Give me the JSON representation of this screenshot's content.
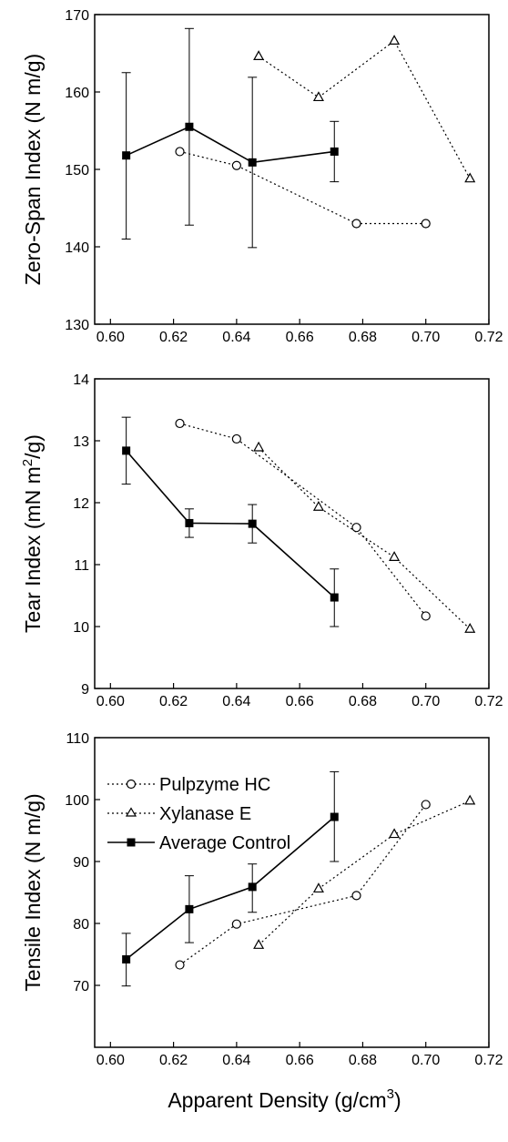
{
  "chart_data": [
    {
      "type": "line",
      "ylabel": "Zero-Span Index (N  m/g)",
      "xlabel": "",
      "xlim": [
        0.595,
        0.72
      ],
      "ylim": [
        130,
        170
      ],
      "xticks": [
        "0.60",
        "0.62",
        "0.64",
        "0.66",
        "0.68",
        "0.70",
        "0.72"
      ],
      "yticks": [
        "130",
        "140",
        "150",
        "160",
        "170"
      ],
      "grid": false,
      "series": [
        {
          "key": "pulpzyme",
          "marker": "circle",
          "style": "dotted",
          "x": [
            0.622,
            0.64,
            0.678,
            0.7
          ],
          "y": [
            152.3,
            150.5,
            143.0,
            143.0
          ]
        },
        {
          "key": "xylanase",
          "marker": "triangle",
          "style": "dotted",
          "x": [
            0.647,
            0.666,
            0.69,
            0.714
          ],
          "y": [
            164.6,
            159.3,
            166.6,
            148.8
          ]
        },
        {
          "key": "control",
          "marker": "square",
          "style": "solid",
          "x": [
            0.605,
            0.625,
            0.645,
            0.671
          ],
          "y": [
            151.8,
            155.5,
            150.9,
            152.3
          ],
          "err_low": [
            141.0,
            142.8,
            139.9,
            148.4
          ],
          "err_high": [
            162.5,
            168.2,
            161.9,
            156.2
          ]
        }
      ]
    },
    {
      "type": "line",
      "ylabel": "Tear Index (mN  m²/g)",
      "xlabel": "",
      "xlim": [
        0.595,
        0.72
      ],
      "ylim": [
        9,
        14
      ],
      "xticks": [
        "0.60",
        "0.62",
        "0.64",
        "0.66",
        "0.68",
        "0.70",
        "0.72"
      ],
      "yticks": [
        "9",
        "10",
        "11",
        "12",
        "13",
        "14"
      ],
      "grid": false,
      "series": [
        {
          "key": "pulpzyme",
          "marker": "circle",
          "style": "dotted",
          "x": [
            0.622,
            0.64,
            0.678,
            0.7
          ],
          "y": [
            13.28,
            13.03,
            11.6,
            10.17
          ]
        },
        {
          "key": "xylanase",
          "marker": "triangle",
          "style": "dotted",
          "x": [
            0.647,
            0.666,
            0.69,
            0.714
          ],
          "y": [
            12.89,
            11.93,
            11.12,
            9.96
          ]
        },
        {
          "key": "control",
          "marker": "square",
          "style": "solid",
          "x": [
            0.605,
            0.625,
            0.645,
            0.671
          ],
          "y": [
            12.84,
            11.67,
            11.66,
            10.47
          ],
          "err_low": [
            12.3,
            11.44,
            11.35,
            10.0
          ],
          "err_high": [
            13.38,
            11.9,
            11.97,
            10.93
          ]
        }
      ]
    },
    {
      "type": "line",
      "ylabel": "Tensile Index (N  m/g)",
      "xlabel": "Apparent Density (g/cm³)",
      "xlim": [
        0.595,
        0.72
      ],
      "ylim": [
        60,
        110
      ],
      "xticks": [
        "0.60",
        "0.62",
        "0.64",
        "0.66",
        "0.68",
        "0.70",
        "0.72"
      ],
      "yticks": [
        "70",
        "80",
        "90",
        "100",
        "110"
      ],
      "grid": false,
      "legend_position": "top-left",
      "series": [
        {
          "key": "pulpzyme",
          "name": "Pulpzyme HC",
          "marker": "circle",
          "style": "dotted",
          "x": [
            0.622,
            0.64,
            0.678,
            0.7
          ],
          "y": [
            73.3,
            79.9,
            84.5,
            99.2
          ]
        },
        {
          "key": "xylanase",
          "name": "Xylanase E",
          "marker": "triangle",
          "style": "dotted",
          "x": [
            0.647,
            0.666,
            0.69,
            0.714
          ],
          "y": [
            76.5,
            85.6,
            94.4,
            99.8
          ]
        },
        {
          "key": "control",
          "name": "Average Control",
          "marker": "square",
          "style": "solid",
          "x": [
            0.605,
            0.625,
            0.645,
            0.671
          ],
          "y": [
            74.2,
            82.3,
            85.9,
            97.2
          ],
          "err_low": [
            69.9,
            76.9,
            81.8,
            90.0
          ],
          "err_high": [
            78.4,
            87.7,
            89.6,
            104.5
          ]
        }
      ]
    }
  ],
  "legend": {
    "pulpzyme_label": "Pulpzyme HC",
    "xylanase_label": "Xylanase E",
    "control_label": "Average Control"
  }
}
